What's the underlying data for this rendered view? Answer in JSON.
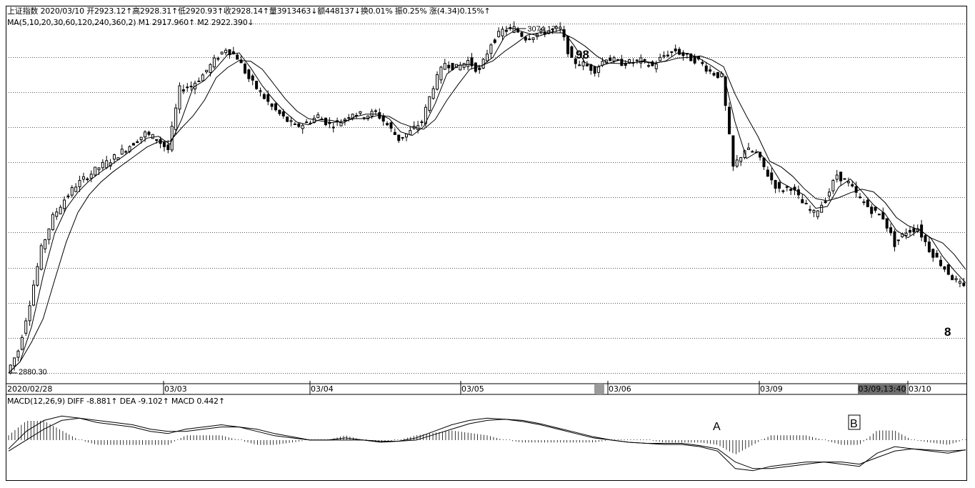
{
  "header": {
    "quote_line": "上证指数 2020/03/10 开2923.12↑高2928.31↑低2920.93↑收2928.14↑量3913463↓额448137↓换0.01% 振0.25% 涨(4.34)0.15%↑",
    "ma_line": "MA(5,10,20,30,60,120,240,360,2)  M1 2917.960↑  M2 2922.390↓",
    "macd_line": "MACD(12,26,9)  DIFF -8.881↑  DEA -9.102↑  MACD 0.442↑"
  },
  "x_axis": {
    "labels": [
      "2020/02/28",
      "03/03",
      "03/04",
      "03/05",
      "03/06",
      "03/09",
      "03/10"
    ],
    "crosshair_label": "03/09,13:40"
  },
  "annotations": {
    "high_value": "3074.17",
    "low_value": "2880.30",
    "mark_98": "98",
    "mark_8": "8",
    "macd_mark_a": "A",
    "macd_mark_b": "B"
  },
  "colors": {
    "line": "#000000",
    "grid": "#555555",
    "crosshair_bg": "#6e6e6e"
  },
  "chart_data": [
    {
      "type": "line",
      "name": "price",
      "x_key_times": [
        "2020/02/28",
        "03/03",
        "03/04",
        "03/05",
        "03/06",
        "03/09",
        "03/10"
      ],
      "close_trace": [
        2880.3,
        2893,
        2920,
        2950,
        2968,
        2978,
        2986,
        2991,
        2996,
        3000,
        3005,
        3010,
        3015,
        3012,
        3006,
        3040,
        3042,
        3048,
        3056,
        3063,
        3058,
        3046,
        3038,
        3030,
        3024,
        3019,
        3021,
        3025,
        3020,
        3022,
        3027,
        3025,
        3027,
        3020,
        3012,
        3016,
        3022,
        3042,
        3055,
        3052,
        3056,
        3050,
        3066,
        3073,
        3074.17,
        3069,
        3071,
        3073,
        3074,
        3056,
        3054,
        3051,
        3058,
        3055,
        3055,
        3056,
        3053,
        3059,
        3062,
        3058,
        3056,
        3050,
        3047,
        2996,
        3006,
        3004,
        2992,
        2983,
        2985,
        2976,
        2970,
        2978,
        2992,
        2987,
        2978,
        2972,
        2968,
        2953,
        2960,
        2962,
        2950,
        2942,
        2934,
        2928.14
      ],
      "y_range": [
        2880.3,
        3074.17
      ]
    },
    {
      "type": "line",
      "name": "macd",
      "diff_trace": [
        -8,
        8,
        18,
        22,
        20,
        16,
        14,
        12,
        8,
        6,
        10,
        12,
        14,
        12,
        8,
        4,
        2,
        0,
        0,
        2,
        0,
        -2,
        -1,
        2,
        8,
        14,
        18,
        20,
        19,
        17,
        14,
        10,
        6,
        2,
        0,
        -2,
        -3,
        -4,
        -4,
        -6,
        -10,
        -26,
        -28,
        -24,
        -22,
        -20,
        -20,
        -22,
        -24,
        -12,
        -6,
        -8,
        -10,
        -12,
        -8.881
      ],
      "dea_trace": [
        -10,
        0,
        10,
        18,
        20,
        18,
        16,
        14,
        10,
        8,
        8,
        10,
        12,
        12,
        10,
        6,
        3,
        0,
        0,
        0,
        0,
        -1,
        -1,
        0,
        5,
        10,
        15,
        18,
        19,
        18,
        15,
        11,
        7,
        3,
        0,
        -2,
        -3,
        -3,
        -3,
        -5,
        -8,
        -20,
        -26,
        -26,
        -24,
        -22,
        -20,
        -20,
        -22,
        -16,
        -10,
        -8,
        -9,
        -10,
        -9.102
      ],
      "latest": {
        "DIFF": -8.881,
        "DEA": -9.102,
        "MACD": 0.442
      }
    }
  ]
}
